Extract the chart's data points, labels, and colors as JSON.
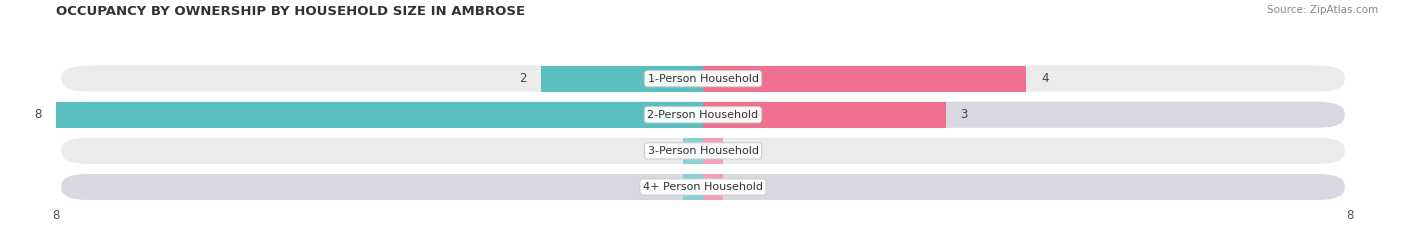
{
  "title": "OCCUPANCY BY OWNERSHIP BY HOUSEHOLD SIZE IN AMBROSE",
  "source": "Source: ZipAtlas.com",
  "categories": [
    "1-Person Household",
    "2-Person Household",
    "3-Person Household",
    "4+ Person Household"
  ],
  "owner_values": [
    2,
    8,
    0,
    0
  ],
  "renter_values": [
    4,
    3,
    0,
    0
  ],
  "owner_color": "#5bbfbf",
  "renter_color": "#f07090",
  "owner_color_light": "#88d4d4",
  "renter_color_light": "#f4a0b8",
  "row_bg_odd": "#ebebeb",
  "row_bg_even": "#d8d8e0",
  "xlim": [
    -8,
    8
  ],
  "x_ticks": [
    -8,
    8
  ],
  "figsize": [
    14.06,
    2.33
  ],
  "dpi": 100
}
